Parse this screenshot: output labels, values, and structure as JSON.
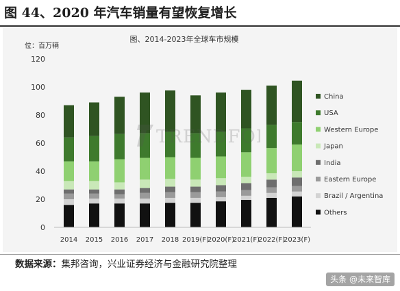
{
  "figure": {
    "title": "图 44、2020 年汽车销量有望恢复增长",
    "source_label": "数据来源：",
    "source_text": "集邦咨询，兴业证券经济与金融研究院整理",
    "corner_mark": "头条 @未来智库"
  },
  "chart_data": {
    "type": "bar",
    "stacked": true,
    "title": "图、2014-2023年全球车市规模",
    "ylabel": "位：百万辆",
    "xlabel": "",
    "ylim": [
      0,
      120
    ],
    "yticks": [
      0,
      20,
      40,
      60,
      80,
      100,
      120
    ],
    "grid": false,
    "legend_position": "right",
    "watermark": "TRENDFORCE",
    "categories": [
      "2014",
      "2015",
      "2016",
      "2017",
      "2018",
      "2019(F)",
      "2020(F)",
      "2021(F)",
      "2022(F)",
      "2023(F)"
    ],
    "series": [
      {
        "name": "Others",
        "color": "#111111",
        "values": [
          16,
          17,
          17,
          17,
          17.5,
          17.5,
          18.5,
          19.5,
          21,
          22
        ]
      },
      {
        "name": "Brazil / Argentina",
        "color": "#d3d3d3",
        "values": [
          4,
          3.5,
          3.5,
          3.5,
          3.5,
          3.5,
          3,
          3,
          3.5,
          3.5
        ]
      },
      {
        "name": "Eastern Europe",
        "color": "#9a9a9a",
        "values": [
          4,
          3.5,
          3,
          4,
          4,
          4,
          4,
          4,
          4,
          4
        ]
      },
      {
        "name": "India",
        "color": "#6e6e6e",
        "values": [
          3,
          3,
          3.5,
          3.5,
          4,
          4,
          4.5,
          5,
          5.5,
          6
        ]
      },
      {
        "name": "Japan",
        "color": "#c9e8b8",
        "values": [
          6,
          6,
          5,
          6,
          5.5,
          5,
          5,
          4.5,
          4.5,
          4.5
        ]
      },
      {
        "name": "Western Europe",
        "color": "#8fd071",
        "values": [
          14,
          14,
          16.5,
          15.5,
          15.5,
          15.5,
          15.5,
          17.5,
          18,
          19
        ]
      },
      {
        "name": "USA",
        "color": "#3e7a2d",
        "values": [
          17,
          18,
          18,
          17.5,
          18,
          17.5,
          17.5,
          17,
          16.5,
          16
        ]
      },
      {
        "name": "China",
        "color": "#2f5422",
        "values": [
          23,
          24,
          26.5,
          29,
          29.5,
          27,
          28,
          27.5,
          28,
          29.5
        ]
      }
    ]
  }
}
